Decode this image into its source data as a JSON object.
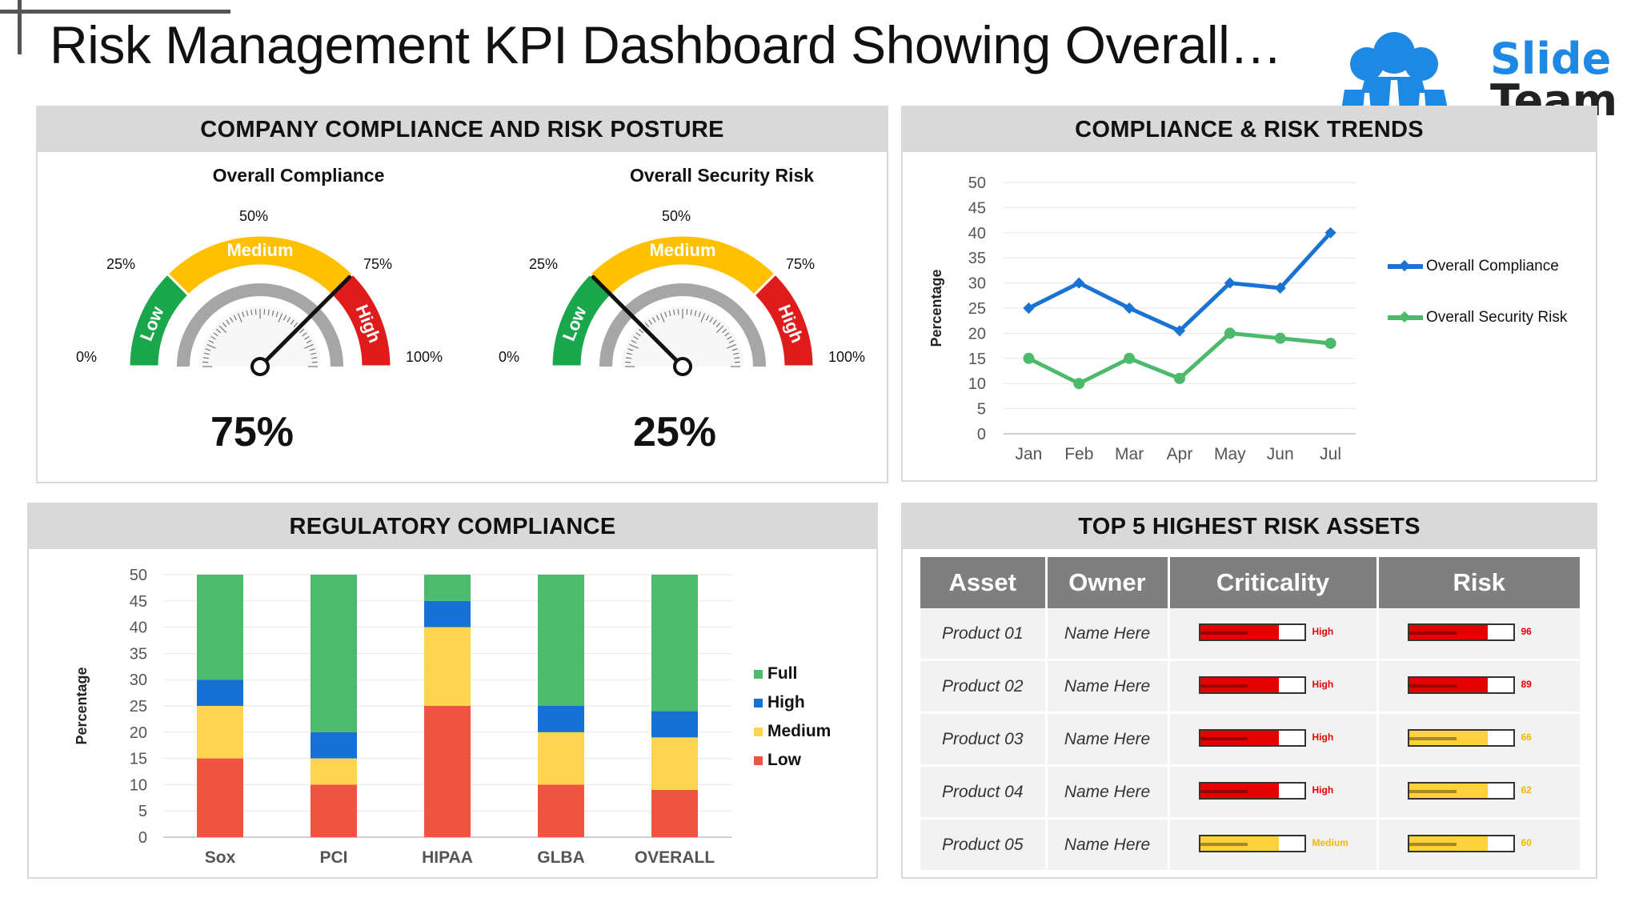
{
  "page": {
    "title": "Risk Management KPI Dashboard Showing Overall…"
  },
  "logo": {
    "line1": "Slide",
    "line2": "Team",
    "brand_color": "#1e88e5"
  },
  "compliance_posture": {
    "heading": "COMPANY COMPLIANCE AND RISK POSTURE",
    "gauges": [
      {
        "title": "Overall Compliance",
        "value": "75%",
        "needle_fraction": 0.75,
        "labels": {
          "p0": "0%",
          "p25": "25%",
          "p50": "50%",
          "p75": "75%",
          "p100": "100%"
        },
        "bands": {
          "low": "Low",
          "medium": "Medium",
          "high": "High"
        }
      },
      {
        "title": "Overall Security Risk",
        "value": "25%",
        "needle_fraction": 0.25,
        "labels": {
          "p0": "0%",
          "p25": "25%",
          "p50": "50%",
          "p75": "75%",
          "p100": "100%"
        },
        "bands": {
          "low": "Low",
          "medium": "Medium",
          "high": "High"
        }
      }
    ],
    "colors": {
      "low": "#1aa64a",
      "medium": "#ffc000",
      "high": "#e01b1b"
    }
  },
  "trends": {
    "heading": "COMPLIANCE & RISK TRENDS",
    "chart_data": {
      "type": "line",
      "x": [
        "Jan",
        "Feb",
        "Mar",
        "Apr",
        "May",
        "Jun",
        "Jul"
      ],
      "ylabel": "Percentage",
      "ylim": [
        0,
        50
      ],
      "yticks": [
        0,
        5,
        10,
        15,
        20,
        25,
        30,
        35,
        40,
        45,
        50
      ],
      "legend_position": "right",
      "series": [
        {
          "name": "Overall Compliance",
          "color": "#1a73d2",
          "values": [
            25,
            30,
            25,
            20.5,
            30,
            29,
            40
          ]
        },
        {
          "name": "Overall Security Risk",
          "color": "#4cba6a",
          "values": [
            15,
            10,
            15,
            11,
            20,
            19,
            18
          ]
        }
      ]
    }
  },
  "regulatory": {
    "heading": "REGULATORY COMPLIANCE",
    "chart_data": {
      "type": "bar",
      "stacked": true,
      "categories": [
        "Sox",
        "PCI",
        "HIPAA",
        "GLBA",
        "OVERALL"
      ],
      "ylabel": "Percentage",
      "ylim": [
        0,
        50
      ],
      "yticks": [
        0,
        5,
        10,
        15,
        20,
        25,
        30,
        35,
        40,
        45,
        50
      ],
      "legend_position": "right",
      "series": [
        {
          "name": "Low",
          "color": "#ef5440",
          "values": [
            15,
            10,
            25,
            10,
            9
          ]
        },
        {
          "name": "Medium",
          "color": "#fdd54f",
          "values": [
            10,
            5,
            15,
            10,
            10
          ]
        },
        {
          "name": "High",
          "color": "#1572d4",
          "values": [
            5,
            5,
            5,
            5,
            5
          ]
        },
        {
          "name": "Full",
          "color": "#4dbb6b",
          "values": [
            20,
            30,
            5,
            25,
            26
          ]
        }
      ],
      "legend_order": [
        "Full",
        "High",
        "Medium",
        "Low"
      ]
    }
  },
  "assets": {
    "heading": "TOP 5 HIGHEST RISK ASSETS",
    "columns": [
      "Asset",
      "Owner",
      "Criticality",
      "Risk"
    ],
    "rows": [
      {
        "asset": "Product 01",
        "owner": "Name Here",
        "criticality": "High",
        "crit_level": 0.76,
        "crit_color": "#e60000",
        "risk": "96",
        "risk_level": 0.76,
        "risk_color": "#e60000"
      },
      {
        "asset": "Product 02",
        "owner": "Name Here",
        "criticality": "High",
        "crit_level": 0.76,
        "crit_color": "#e60000",
        "risk": "89",
        "risk_level": 0.76,
        "risk_color": "#e60000"
      },
      {
        "asset": "Product 03",
        "owner": "Name Here",
        "criticality": "High",
        "crit_level": 0.76,
        "crit_color": "#e60000",
        "risk": "66",
        "risk_level": 0.76,
        "risk_color": "#ffd23c"
      },
      {
        "asset": "Product 04",
        "owner": "Name Here",
        "criticality": "High",
        "crit_level": 0.76,
        "crit_color": "#e60000",
        "risk": "62",
        "risk_level": 0.76,
        "risk_color": "#ffd23c"
      },
      {
        "asset": "Product 05",
        "owner": "Name Here",
        "criticality": "Medium",
        "crit_level": 0.76,
        "crit_color": "#ffd23c",
        "risk": "60",
        "risk_level": 0.76,
        "risk_color": "#ffd23c"
      }
    ]
  }
}
